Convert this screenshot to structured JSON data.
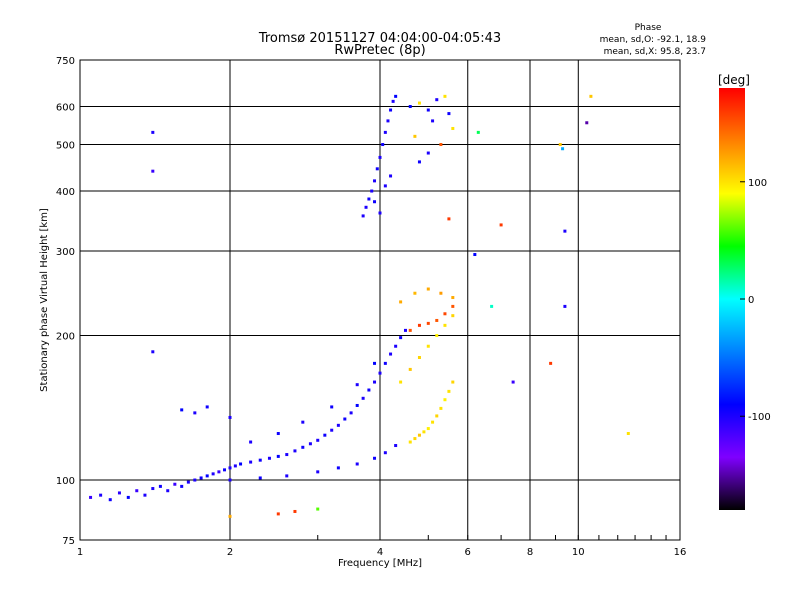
{
  "chart_data": {
    "type": "scatter",
    "title": "Tromsø 20151127 04:04:00-04:05:43",
    "subtitle": "RwPretec (8p)",
    "xlabel": "Frequency [MHz]",
    "ylabel": "Stationary phase Virtual Height [km]",
    "x_scale": "log2",
    "y_scale": "log",
    "xlim": [
      1,
      16
    ],
    "ylim": [
      75,
      750
    ],
    "x_ticks": [
      1,
      2,
      4,
      6,
      8,
      10,
      16
    ],
    "x_tick_labels": [
      "1",
      "2",
      "4",
      "6",
      "8",
      "10",
      "16"
    ],
    "y_ticks": [
      75,
      100,
      200,
      300,
      400,
      500,
      600,
      750
    ],
    "y_tick_labels": [
      "75",
      "100",
      "200",
      "300",
      "400",
      "500",
      "600",
      "750"
    ],
    "grid": true,
    "stats": {
      "heading": "Phase",
      "line_o": "mean, sd,O: -92.1, 18.9",
      "line_x": "mean, sd,X:  95.8, 23.7"
    },
    "colorbar": {
      "label": "[deg]",
      "range": [
        -180,
        180
      ],
      "ticks": [
        100,
        0,
        -100
      ],
      "tick_labels": [
        "100",
        "0",
        "-100"
      ],
      "colormap": [
        "#000000",
        "#7f00ff",
        "#0000ff",
        "#0080ff",
        "#00ffff",
        "#00ff00",
        "#ffff00",
        "#ff8000",
        "#ff0000"
      ]
    },
    "series": [
      {
        "points": [
          [
            1.05,
            92,
            -110
          ],
          [
            1.1,
            93,
            -100
          ],
          [
            1.15,
            91,
            -95
          ],
          [
            1.2,
            94,
            -105
          ],
          [
            1.25,
            92,
            -90
          ],
          [
            1.3,
            95,
            -110
          ],
          [
            1.35,
            93,
            -100
          ],
          [
            1.4,
            96,
            -100
          ],
          [
            1.45,
            97,
            -95
          ],
          [
            1.5,
            95,
            -100
          ],
          [
            1.55,
            98,
            -110
          ],
          [
            1.6,
            97,
            -95
          ],
          [
            1.65,
            99,
            -100
          ],
          [
            1.7,
            100,
            -100
          ],
          [
            1.75,
            101,
            -95
          ],
          [
            1.8,
            102,
            -90
          ],
          [
            1.85,
            103,
            -100
          ],
          [
            1.9,
            104,
            -110
          ],
          [
            1.95,
            105,
            -95
          ],
          [
            2.0,
            106,
            -100
          ],
          [
            2.05,
            107,
            -100
          ],
          [
            2.1,
            108,
            -90
          ],
          [
            2.2,
            109,
            -100
          ],
          [
            2.3,
            110,
            -95
          ],
          [
            2.4,
            111,
            -100
          ],
          [
            2.5,
            112,
            -90
          ],
          [
            2.6,
            113,
            -100
          ],
          [
            2.7,
            115,
            -100
          ],
          [
            2.8,
            117,
            -95
          ],
          [
            2.9,
            119,
            -100
          ],
          [
            3.0,
            121,
            -100
          ],
          [
            3.1,
            124,
            -95
          ],
          [
            3.2,
            127,
            -100
          ],
          [
            3.3,
            130,
            -100
          ],
          [
            3.4,
            134,
            -95
          ],
          [
            3.5,
            138,
            -100
          ],
          [
            3.6,
            143,
            -90
          ],
          [
            3.7,
            148,
            -100
          ],
          [
            3.8,
            154,
            -95
          ],
          [
            3.9,
            160,
            -100
          ],
          [
            4.0,
            167,
            -100
          ],
          [
            4.1,
            175,
            -95
          ],
          [
            4.2,
            183,
            -100
          ],
          [
            4.3,
            190,
            -100
          ],
          [
            4.4,
            198,
            -95
          ],
          [
            4.5,
            205,
            -100
          ],
          [
            1.6,
            140,
            -90
          ],
          [
            1.7,
            138,
            -100
          ],
          [
            1.8,
            142,
            -95
          ],
          [
            2.0,
            135,
            -100
          ],
          [
            2.2,
            120,
            -100
          ],
          [
            2.5,
            125,
            -95
          ],
          [
            2.8,
            132,
            -100
          ],
          [
            3.2,
            142,
            -95
          ],
          [
            3.6,
            158,
            -100
          ],
          [
            3.9,
            175,
            -90
          ],
          [
            2.0,
            100,
            -100
          ],
          [
            2.3,
            101,
            -95
          ],
          [
            2.6,
            102,
            -100
          ],
          [
            3.0,
            104,
            -100
          ],
          [
            3.3,
            106,
            -95
          ],
          [
            3.6,
            108,
            -100
          ],
          [
            3.9,
            111,
            -95
          ],
          [
            4.1,
            114,
            -100
          ],
          [
            4.3,
            118,
            -100
          ],
          [
            4.6,
            120,
            100
          ],
          [
            4.7,
            122,
            105
          ],
          [
            4.8,
            124,
            110
          ],
          [
            4.9,
            126,
            100
          ],
          [
            5.0,
            128,
            95
          ],
          [
            5.1,
            132,
            100
          ],
          [
            5.2,
            136,
            105
          ],
          [
            5.3,
            141,
            100
          ],
          [
            5.4,
            147,
            95
          ],
          [
            5.5,
            153,
            100
          ],
          [
            5.6,
            160,
            105
          ],
          [
            4.4,
            160,
            100
          ],
          [
            4.6,
            170,
            110
          ],
          [
            4.8,
            180,
            105
          ],
          [
            5.0,
            190,
            100
          ],
          [
            5.2,
            200,
            95
          ],
          [
            5.4,
            210,
            100
          ],
          [
            5.6,
            220,
            105
          ],
          [
            4.6,
            205,
            150
          ],
          [
            4.8,
            210,
            160
          ],
          [
            5.0,
            212,
            155
          ],
          [
            5.2,
            215,
            150
          ],
          [
            5.4,
            222,
            155
          ],
          [
            5.6,
            230,
            150
          ],
          [
            4.4,
            235,
            120
          ],
          [
            4.7,
            245,
            115
          ],
          [
            5.0,
            250,
            120
          ],
          [
            5.3,
            245,
            125
          ],
          [
            5.6,
            240,
            120
          ],
          [
            3.7,
            355,
            -100
          ],
          [
            3.75,
            370,
            -100
          ],
          [
            3.8,
            385,
            -95
          ],
          [
            3.85,
            400,
            -100
          ],
          [
            3.9,
            420,
            -100
          ],
          [
            3.95,
            445,
            -95
          ],
          [
            4.0,
            470,
            -100
          ],
          [
            4.05,
            500,
            -95
          ],
          [
            4.1,
            530,
            -100
          ],
          [
            4.15,
            560,
            -100
          ],
          [
            4.2,
            590,
            -95
          ],
          [
            4.25,
            615,
            -100
          ],
          [
            4.3,
            630,
            -90
          ],
          [
            4.0,
            360,
            -100
          ],
          [
            3.9,
            380,
            -95
          ],
          [
            4.1,
            410,
            -100
          ],
          [
            4.2,
            430,
            -100
          ],
          [
            4.6,
            600,
            -90
          ],
          [
            4.8,
            610,
            100
          ],
          [
            5.0,
            590,
            -95
          ],
          [
            5.2,
            620,
            -100
          ],
          [
            5.4,
            630,
            100
          ],
          [
            5.5,
            580,
            -95
          ],
          [
            5.6,
            540,
            100
          ],
          [
            5.3,
            500,
            150
          ],
          [
            5.0,
            480,
            -100
          ],
          [
            4.8,
            460,
            -95
          ],
          [
            4.7,
            520,
            110
          ],
          [
            5.1,
            560,
            -100
          ],
          [
            5.5,
            350,
            160
          ],
          [
            6.2,
            295,
            -90
          ],
          [
            6.3,
            530,
            30
          ],
          [
            6.7,
            230,
            10
          ],
          [
            7.0,
            340,
            160
          ],
          [
            7.4,
            160,
            -110
          ],
          [
            8.8,
            175,
            160
          ],
          [
            9.2,
            500,
            110
          ],
          [
            9.3,
            490,
            -30
          ],
          [
            9.4,
            330,
            -100
          ],
          [
            9.4,
            230,
            -100
          ],
          [
            10.4,
            555,
            -150
          ],
          [
            10.6,
            630,
            110
          ],
          [
            12.6,
            125,
            100
          ],
          [
            1.4,
            530,
            -100
          ],
          [
            1.4,
            440,
            -110
          ],
          [
            1.4,
            185,
            -100
          ],
          [
            2.0,
            84,
            120
          ],
          [
            2.5,
            85,
            160
          ],
          [
            2.7,
            86,
            160
          ],
          [
            3.0,
            87,
            60
          ]
        ]
      }
    ]
  }
}
